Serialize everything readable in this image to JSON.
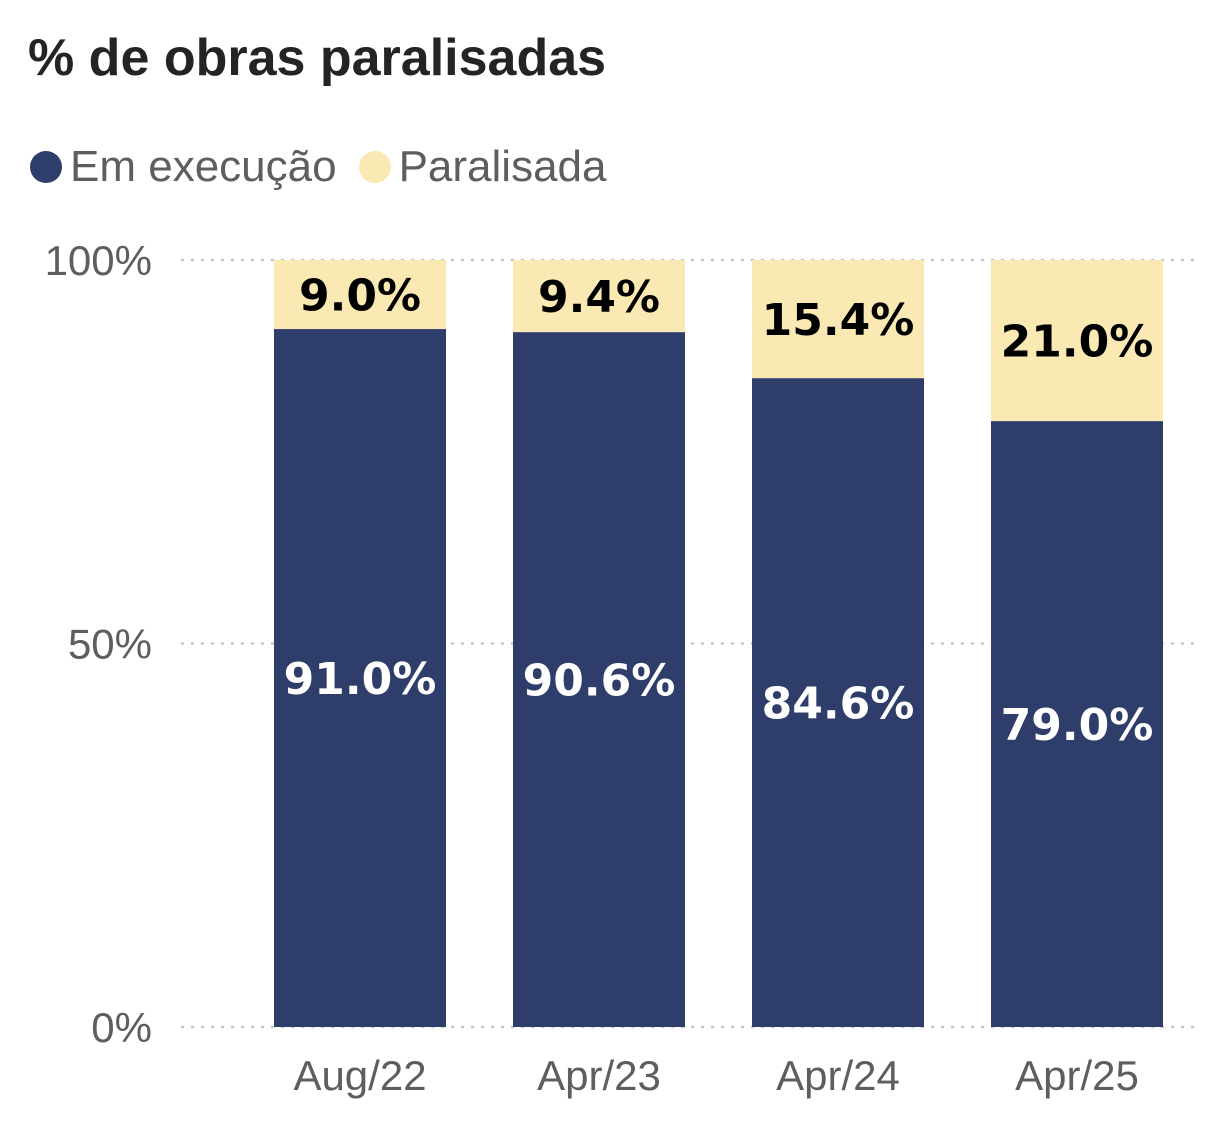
{
  "chart_data": {
    "type": "bar",
    "stacked": true,
    "title": "% de obras paralisadas",
    "categories": [
      "Aug/22",
      "Apr/23",
      "Apr/24",
      "Apr/25"
    ],
    "series": [
      {
        "name": "Em execução",
        "color": "#2f3d6b",
        "label_color": "#ffffff",
        "values": [
          91.0,
          90.6,
          84.6,
          79.0
        ],
        "labels": [
          "91.0%",
          "90.6%",
          "84.6%",
          "79.0%"
        ]
      },
      {
        "name": "Paralisada",
        "color": "#fbe9b4",
        "label_color": "#000000",
        "values": [
          9.0,
          9.4,
          15.4,
          21.0
        ],
        "labels": [
          "9.0%",
          "9.4%",
          "15.4%",
          "21.0%"
        ]
      }
    ],
    "ylim": [
      0,
      100
    ],
    "yticks": [
      "0%",
      "50%",
      "100%"
    ],
    "ytick_values": [
      0,
      50,
      100
    ],
    "grid": true,
    "legend_position": "top-left"
  }
}
